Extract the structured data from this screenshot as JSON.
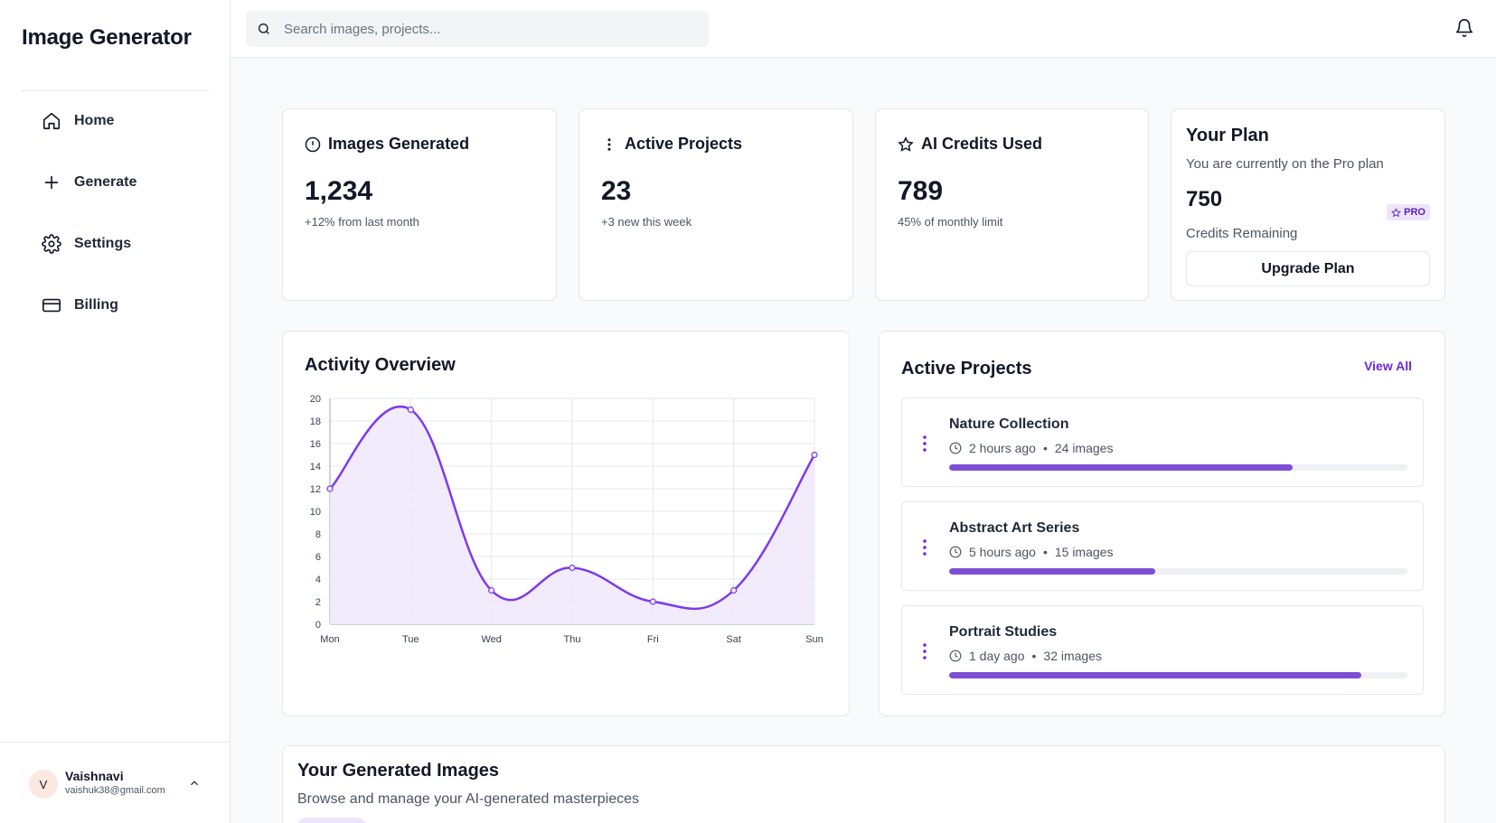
{
  "app": {
    "title": "Image Generator"
  },
  "sidebar": {
    "items": [
      {
        "label": "Home",
        "icon": "home-icon"
      },
      {
        "label": "Generate",
        "icon": "plus-icon"
      },
      {
        "label": "Settings",
        "icon": "gear-icon"
      },
      {
        "label": "Billing",
        "icon": "credit-card-icon"
      }
    ],
    "user": {
      "initial": "V",
      "name": "Vaishnavi",
      "email": "vaishuk38@gmail.com"
    }
  },
  "header": {
    "search_placeholder": "Search images, projects..."
  },
  "stats": [
    {
      "title": "Images Generated",
      "value": "1,234",
      "sub": "+12% from last month",
      "icon": "alert-circle-icon"
    },
    {
      "title": "Active Projects",
      "value": "23",
      "sub": "+3 new this week",
      "icon": "more-vertical-icon"
    },
    {
      "title": "AI Credits Used",
      "value": "789",
      "sub": "45% of monthly limit",
      "icon": "star-icon"
    }
  ],
  "plan": {
    "title": "Your Plan",
    "description": "You are currently on the Pro plan",
    "value": "750",
    "badge": "PRO",
    "credits_label": "Credits Remaining",
    "upgrade_label": "Upgrade Plan"
  },
  "activity": {
    "title": "Activity Overview"
  },
  "chart_data": {
    "type": "area",
    "title": "Activity Overview",
    "categories": [
      "Mon",
      "Tue",
      "Wed",
      "Thu",
      "Fri",
      "Sat",
      "Sun"
    ],
    "values": [
      12,
      19,
      3,
      5,
      2,
      3,
      15
    ],
    "ylim": [
      0,
      20
    ],
    "yticks": [
      0,
      2,
      4,
      6,
      8,
      10,
      12,
      14,
      16,
      18,
      20
    ],
    "grid": true,
    "color": "#7c3aed",
    "fill": "#efe7fb"
  },
  "projects": {
    "title": "Active Projects",
    "view_all": "View All",
    "items": [
      {
        "name": "Nature Collection",
        "time": "2 hours ago",
        "images": "24 images",
        "progress": 0.75
      },
      {
        "name": "Abstract Art Series",
        "time": "5 hours ago",
        "images": "15 images",
        "progress": 0.45
      },
      {
        "name": "Portrait Studies",
        "time": "1 day ago",
        "images": "32 images",
        "progress": 0.9
      }
    ]
  },
  "generated": {
    "title": "Your Generated Images",
    "subtitle": "Browse and manage your AI-generated masterpieces"
  },
  "colors": {
    "accent": "#7c3aed",
    "accent_light": "#ede4fb",
    "border": "#e5e7eb"
  }
}
